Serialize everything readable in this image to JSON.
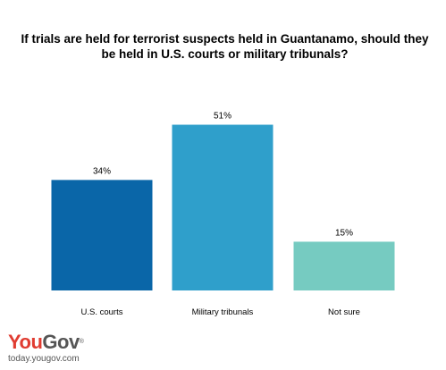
{
  "chart_data": {
    "type": "bar",
    "title_lines": [
      "If trials are held for terrorist suspects held in Guantanamo, should they",
      "be held in U.S. courts or military tribunals?"
    ],
    "categories": [
      "U.S. courts",
      "Military tribunals",
      "Not sure"
    ],
    "values": [
      34,
      51,
      15
    ],
    "value_labels": [
      "34%",
      "51%",
      "15%"
    ],
    "colors": [
      "#0a66a8",
      "#2f9fcb",
      "#76cbc1"
    ],
    "ylim": [
      0,
      55
    ],
    "grid": false,
    "legend": "none"
  },
  "branding": {
    "logo_you": "You",
    "logo_gov": "Gov",
    "logo_mark": "®",
    "site": "today.yougov.com"
  }
}
